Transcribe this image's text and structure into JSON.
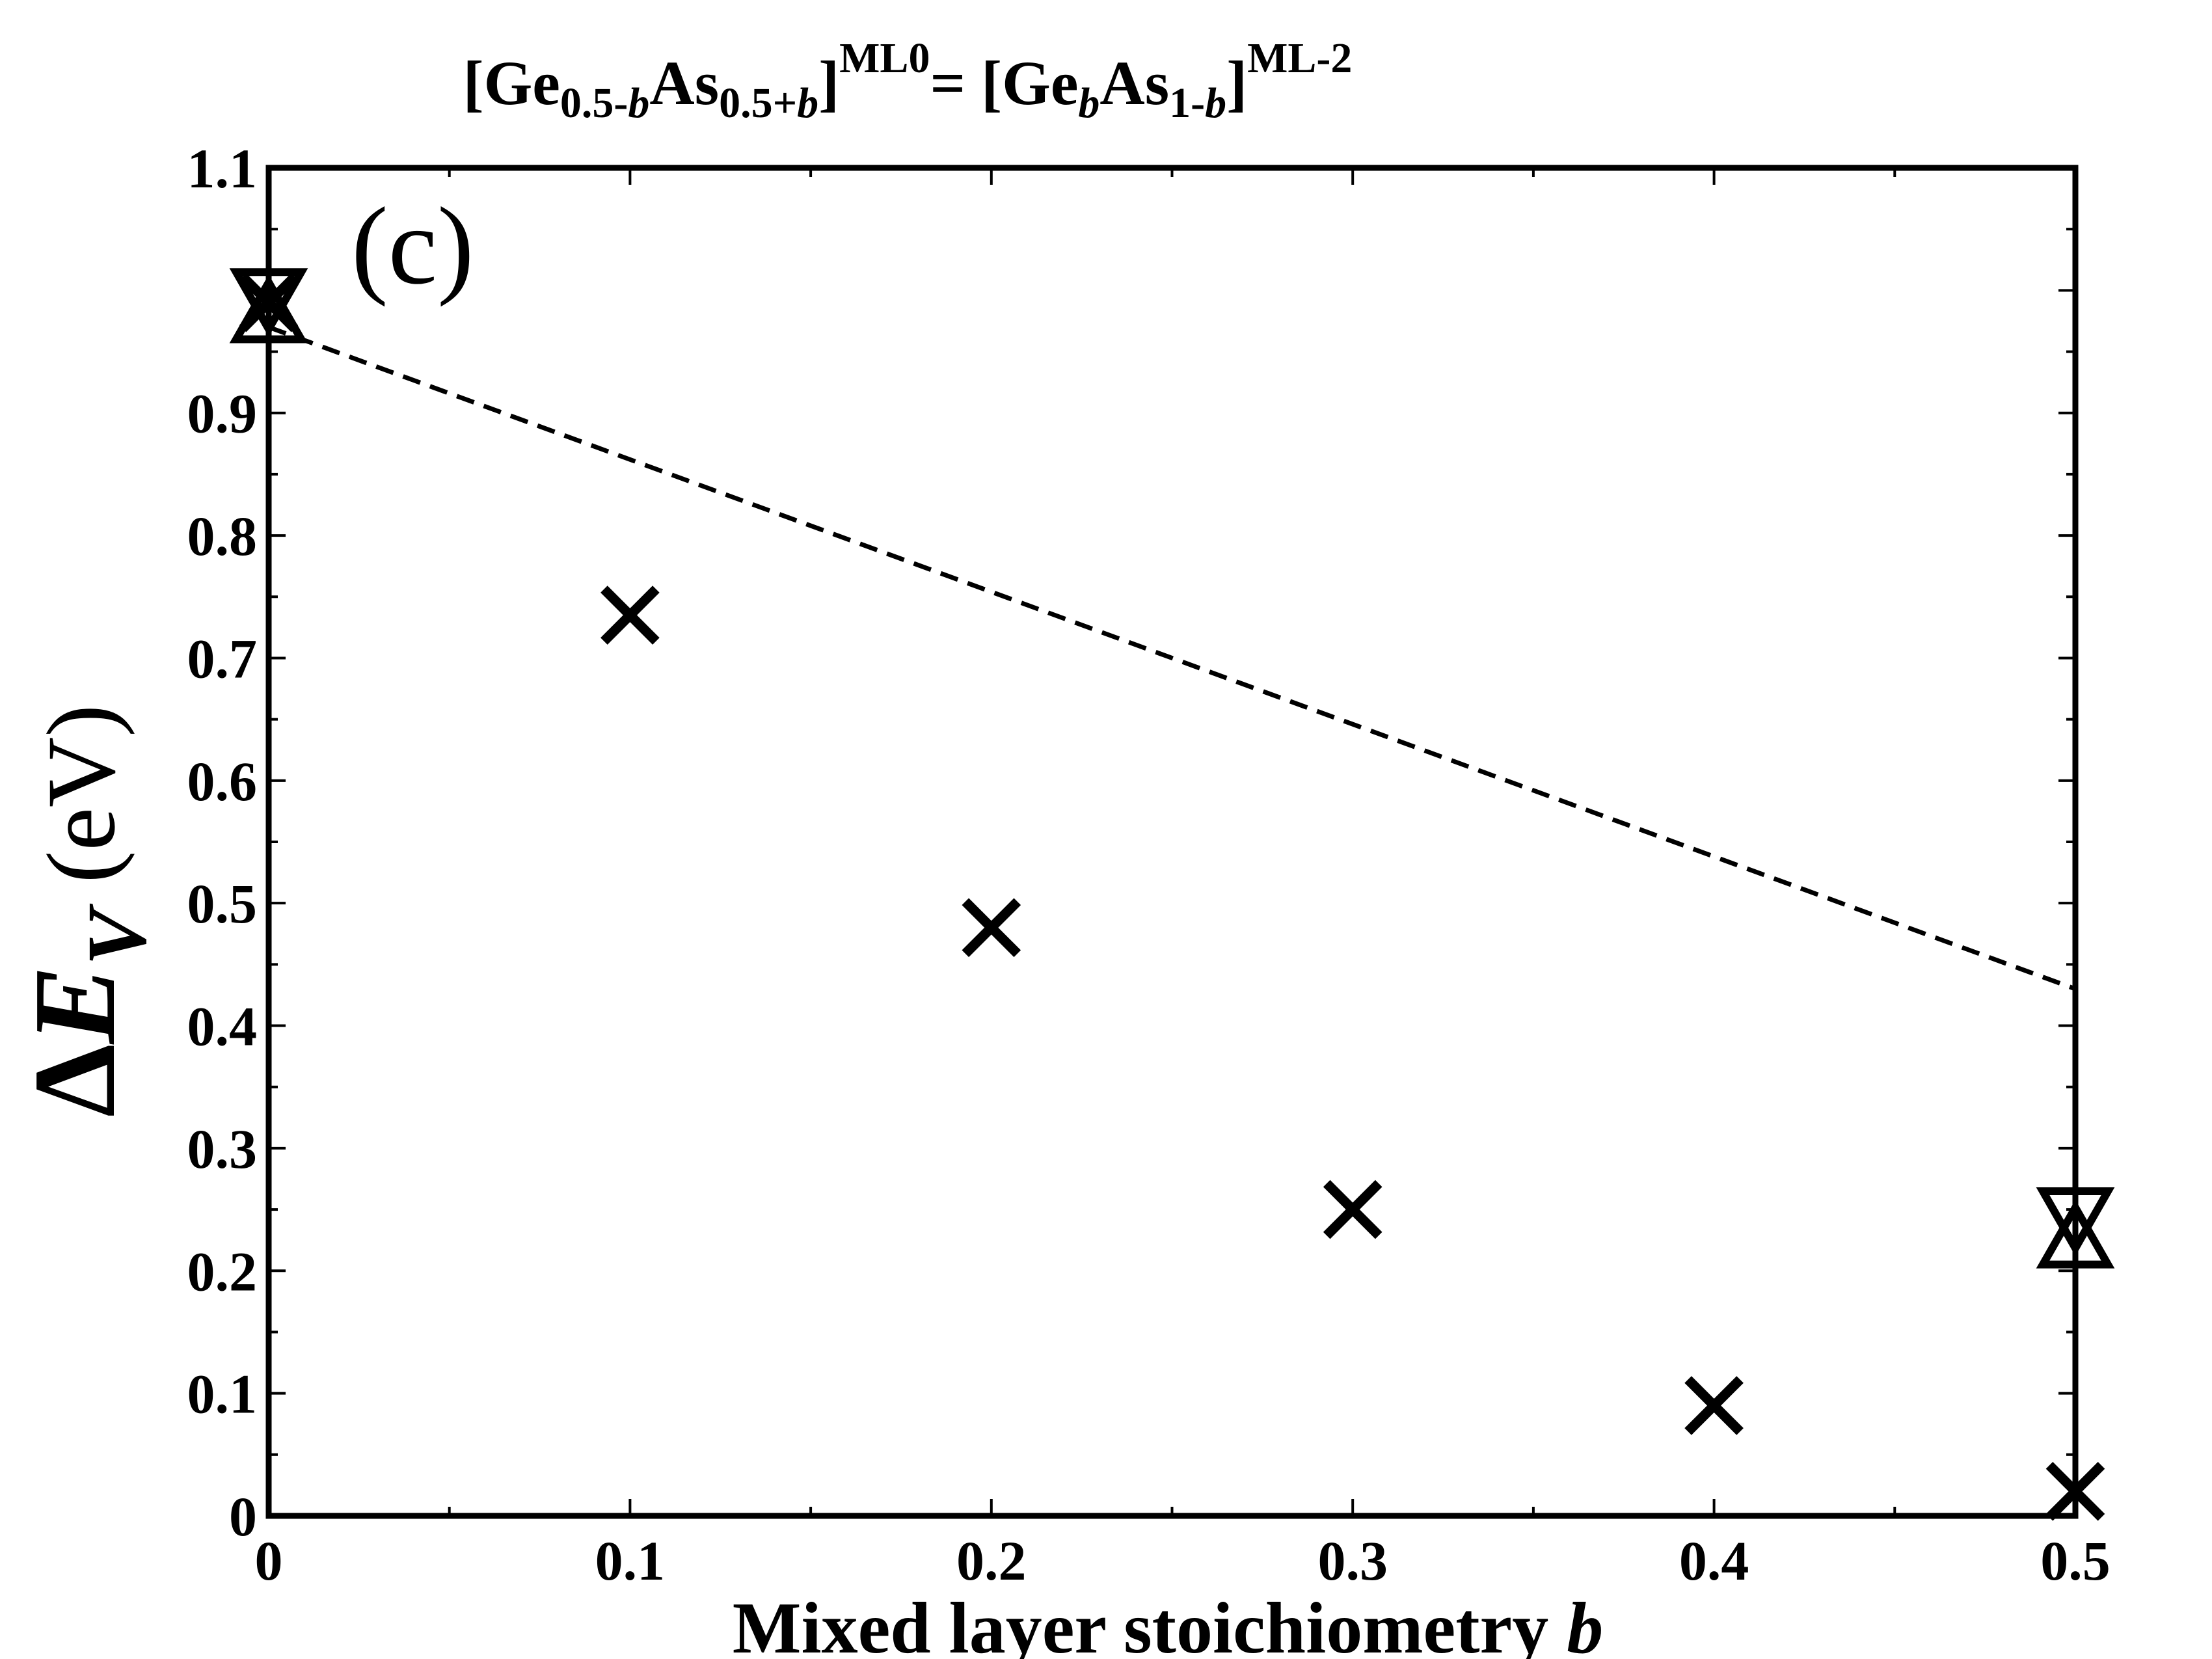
{
  "chart_data": {
    "type": "scatter",
    "title": {
      "parts": [
        {
          "text": "[Ge",
          "style": "normal"
        },
        {
          "text": "0.5-",
          "style": "sub"
        },
        {
          "text": "b",
          "style": "sub-italic"
        },
        {
          "text": "As",
          "style": "normal"
        },
        {
          "text": "0.5+",
          "style": "sub"
        },
        {
          "text": "b",
          "style": "sub-italic"
        },
        {
          "text": "]",
          "style": "normal"
        },
        {
          "text": "ML0",
          "style": "sup"
        },
        {
          "text": "= [Ge",
          "style": "normal"
        },
        {
          "text": "b",
          "style": "sub-italic"
        },
        {
          "text": "As",
          "style": "normal"
        },
        {
          "text": "1-",
          "style": "sub"
        },
        {
          "text": "b",
          "style": "sub-italic"
        },
        {
          "text": "]",
          "style": "normal"
        },
        {
          "text": "ML-2",
          "style": "sup"
        }
      ]
    },
    "panel_label": "(c)",
    "xlabel": "Mixed layer stoichiometry",
    "xlabel_var": "b",
    "ylabel": {
      "delta": "Δ",
      "var": "E",
      "sub": "V",
      "unit": "(eV)"
    },
    "xlim": [
      0,
      0.5
    ],
    "ylim": [
      0,
      1.1
    ],
    "xticks": [
      0,
      0.1,
      0.2,
      0.3,
      0.4,
      0.5
    ],
    "xtick_labels": [
      "0",
      "0.1",
      "0.2",
      "0.3",
      "0.4",
      "0.5"
    ],
    "yticks": [
      0,
      0.1,
      0.2,
      0.3,
      0.4,
      0.5,
      0.6,
      0.7,
      0.8,
      0.9,
      1.0,
      1.1
    ],
    "ytick_labels": [
      "0",
      "0.1",
      "0.2",
      "0.3",
      "0.4",
      "0.5",
      "0.6",
      "0.7",
      "0.8",
      "0.9",
      "",
      "1.1"
    ],
    "grid": false,
    "series": [
      {
        "marker": "x",
        "points": [
          [
            0,
            0.99
          ],
          [
            0.1,
            0.735
          ],
          [
            0.2,
            0.48
          ],
          [
            0.3,
            0.25
          ],
          [
            0.4,
            0.09
          ],
          [
            0.5,
            0.02
          ]
        ]
      },
      {
        "marker": "triangle-up",
        "points": [
          [
            0,
            0.98
          ],
          [
            0.5,
            0.225
          ]
        ]
      },
      {
        "marker": "triangle-down",
        "points": [
          [
            0,
            0.995
          ],
          [
            0.5,
            0.245
          ]
        ]
      },
      {
        "line": "dashed",
        "points": [
          [
            0,
            0.97
          ],
          [
            0.5,
            0.43
          ]
        ]
      }
    ],
    "colors": {
      "ink": "#000000",
      "background": "#ffffff"
    }
  }
}
